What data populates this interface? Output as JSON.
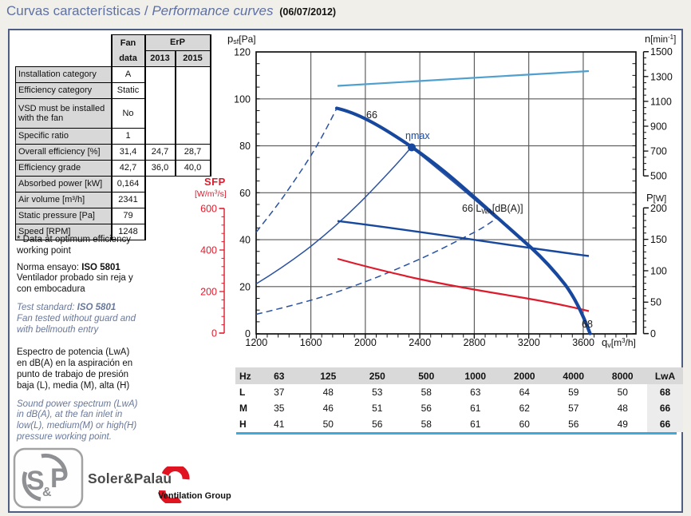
{
  "title": {
    "es": "Curvas características",
    "sep": " / ",
    "en": "Performance curves",
    "date": "(06/07/2012)"
  },
  "fan_table": {
    "header": {
      "fan": "Fan",
      "data": "data",
      "erp": "ErP",
      "y2013": "2013",
      "y2015": "2015"
    },
    "rows": [
      {
        "label": "Installation category",
        "fan": "A"
      },
      {
        "label": "Efficiency category",
        "fan": "Static"
      },
      {
        "label": "VSD must be installed\nwith the fan",
        "fan": "No"
      },
      {
        "label": "Specific ratio",
        "fan": "1"
      },
      {
        "label": "Overall efficiency [%]",
        "fan": "31,4",
        "e2013": "24,7",
        "e2015": "28,7"
      },
      {
        "label": "Efficiency grade",
        "fan": "42,7",
        "e2013": "36,0",
        "e2015": "40,0"
      },
      {
        "label": "Absorbed power [kW]",
        "fan": "0,164"
      },
      {
        "label": "Air volume [m³/h]",
        "fan": "2341"
      },
      {
        "label": "Static pressure [Pa]",
        "fan": "79"
      },
      {
        "label": "Speed [RPM]",
        "fan": "1248"
      }
    ]
  },
  "notes": {
    "n1": "* Data at optimum efficiency\nworking point",
    "n2_prefix": "Norma ensayo: ",
    "n2_standard": "ISO 5801",
    "n2_rest": "Ventilador probado sin reja y\ncon embocadura",
    "n3_prefix": "Test standard: ",
    "n3_standard": "ISO 5801",
    "n3_rest": "Fan tested without guard and\nwith bellmouth entry",
    "n4": "Espectro de potencia (LwA)\nen dB(A) en la aspiración en\npunto de trabajo de presión\nbaja (L), media (M), alta (H)",
    "n5": "Sound power spectrum (LwA)\nin dB(A), at the fan inlet in\nlow(L), medium(M) or high(H)\npressure working point."
  },
  "chart": {
    "y_left": {
      "t1": "p",
      "t2": "sf",
      "t3": "[Pa]",
      "ticks": [
        "120",
        "100",
        "80",
        "60",
        "40",
        "20",
        "0"
      ]
    },
    "y_sfp": {
      "title": "SFP",
      "u1": "[W/m",
      "u2": "3",
      "u3": "/s]",
      "ticks": [
        "600",
        "400",
        "200",
        "0"
      ]
    },
    "y_n": {
      "t1": "n",
      "t2": "[min",
      "t3": "-1",
      "t4": "]",
      "ticks": [
        "1500",
        "1300",
        "1100",
        "900",
        "700",
        "500"
      ]
    },
    "y_p": {
      "t1": "P",
      "t2": "[W]",
      "ticks": [
        "200",
        "150",
        "100",
        "50",
        "0"
      ]
    },
    "x_axis": {
      "t1": "q",
      "t2": "v",
      "t3": "[m",
      "t4": "3",
      "t5": "/h]",
      "ticks": [
        "1200",
        "1600",
        "2000",
        "2400",
        "2800",
        "3200",
        "3600"
      ]
    },
    "labels": {
      "p66": "66",
      "eta": "η",
      "eta_max": "max",
      "lwa_prefix": "66 L",
      "lwa_sub": "WA",
      "lwa_suffix": "[dB(A)]",
      "p68": "68"
    },
    "colors": {
      "curve_blue": "#17489e",
      "light_blue": "#4fa0cf",
      "red": "#dd1b2c",
      "grid": "#585858"
    }
  },
  "chart_data": {
    "type": "line",
    "title": "Performance curves",
    "x_axis": {
      "label": "qv [m3/h]",
      "range": [
        1200,
        4000
      ],
      "ticks": [
        1200,
        1600,
        2000,
        2400,
        2800,
        3200,
        3600
      ]
    },
    "y_axes": {
      "psf_Pa": {
        "range": [
          0,
          120
        ],
        "ticks": [
          0,
          20,
          40,
          60,
          80,
          100,
          120
        ]
      },
      "SFP_W_per_m3s": {
        "range": [
          0,
          600
        ],
        "ticks": [
          0,
          200,
          400,
          600
        ]
      },
      "n_min_1": {
        "range": [
          500,
          1500
        ],
        "ticks": [
          500,
          700,
          900,
          1100,
          1300,
          1500
        ]
      },
      "P_W": {
        "range": [
          0,
          200
        ],
        "ticks": [
          0,
          50,
          100,
          150,
          200
        ]
      }
    },
    "series": [
      {
        "name": "static_pressure_psf_Pa",
        "style": "thick solid blue",
        "x": [
          1790,
          2000,
          2341,
          2600,
          2800,
          3000,
          3200,
          3400,
          3650
        ],
        "y": [
          96,
          92.5,
          79,
          68,
          58,
          48,
          37.5,
          25,
          0
        ]
      },
      {
        "name": "speed_n_min-1",
        "style": "solid light-blue",
        "x": [
          1800,
          2400,
          3000,
          3650
        ],
        "y": [
          1228,
          1262,
          1300,
          1344
        ]
      },
      {
        "name": "power_P_W",
        "style": "solid blue",
        "x": [
          1800,
          2341,
          2800,
          3200,
          3650
        ],
        "y": [
          179,
          163,
          148,
          137,
          123
        ]
      },
      {
        "name": "SFP_W_per_m3s",
        "style": "solid red",
        "x": [
          1800,
          2000,
          2400,
          2800,
          3200,
          3650
        ],
        "y": [
          357,
          320,
          260,
          215,
          165,
          107
        ]
      },
      {
        "name": "system_curve_high",
        "style": "dashed blue",
        "x": [
          1200,
          1400,
          1600,
          1790
        ],
        "y": [
          43,
          58,
          76,
          96
        ]
      },
      {
        "name": "system_curve_mid_through_etamax",
        "style": "thin solid blue",
        "x": [
          1200,
          1600,
          2000,
          2341
        ],
        "y": [
          21,
          37,
          58,
          79
        ]
      },
      {
        "name": "efficiency_descent_after_etamax",
        "style": "thin solid blue",
        "x": [
          2341,
          2960
        ],
        "y": [
          79,
          48
        ]
      },
      {
        "name": "system_curve_low",
        "style": "dashed blue",
        "x": [
          1200,
          1600,
          2000,
          2400,
          2800,
          2960
        ],
        "y": [
          8,
          14,
          22,
          31.5,
          43,
          48
        ]
      }
    ],
    "point_labels": [
      {
        "text": "66",
        "x": 2050,
        "y": 94
      },
      {
        "text": "ηmax",
        "x": 2341,
        "y": 79
      },
      {
        "text": "66 LWA[dB(A)]",
        "x": 2800,
        "y": 52
      },
      {
        "text": "68",
        "x": 3600,
        "y": 3
      }
    ],
    "legend": "none",
    "grid": true
  },
  "sound_table": {
    "headers": [
      "Hz",
      "63",
      "125",
      "250",
      "500",
      "1000",
      "2000",
      "4000",
      "8000",
      "LwA"
    ],
    "rows": [
      {
        "label": "L",
        "values": [
          "37",
          "48",
          "53",
          "58",
          "63",
          "64",
          "59",
          "50"
        ],
        "lwa": "68"
      },
      {
        "label": "M",
        "values": [
          "35",
          "46",
          "51",
          "56",
          "61",
          "62",
          "57",
          "48"
        ],
        "lwa": "66"
      },
      {
        "label": "H",
        "values": [
          "41",
          "50",
          "56",
          "58",
          "61",
          "60",
          "56",
          "49"
        ],
        "lwa": "66"
      }
    ]
  },
  "footer": {
    "logo_s": "S",
    "logo_amp": "&",
    "logo_p": "P",
    "brand": "Soler&Palau",
    "group": "Ventilation Group"
  }
}
